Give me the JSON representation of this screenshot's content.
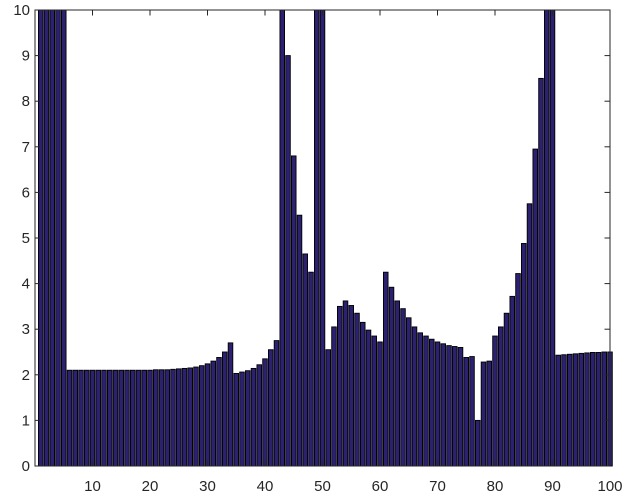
{
  "chart_data": {
    "type": "bar",
    "title": "",
    "xlabel": "",
    "ylabel": "",
    "xlim": [
      0,
      100
    ],
    "ylim": [
      0,
      10
    ],
    "x_ticks": [
      10,
      20,
      30,
      40,
      50,
      60,
      70,
      80,
      90,
      100
    ],
    "y_ticks": [
      0,
      1,
      2,
      3,
      4,
      5,
      6,
      7,
      8,
      9,
      10
    ],
    "grid": false,
    "legend": "none",
    "bar_color": "#2b2170",
    "bar_edge_color": "#000000",
    "x": [
      1,
      2,
      3,
      4,
      5,
      6,
      7,
      8,
      9,
      10,
      11,
      12,
      13,
      14,
      15,
      16,
      17,
      18,
      19,
      20,
      21,
      22,
      23,
      24,
      25,
      26,
      27,
      28,
      29,
      30,
      31,
      32,
      33,
      34,
      35,
      36,
      37,
      38,
      39,
      40,
      41,
      42,
      43,
      44,
      45,
      46,
      47,
      48,
      49,
      50,
      51,
      52,
      53,
      54,
      55,
      56,
      57,
      58,
      59,
      60,
      61,
      62,
      63,
      64,
      65,
      66,
      67,
      68,
      69,
      70,
      71,
      72,
      73,
      74,
      75,
      76,
      77,
      78,
      79,
      80,
      81,
      82,
      83,
      84,
      85,
      86,
      87,
      88,
      89,
      90,
      91,
      92,
      93,
      94,
      95,
      96,
      97,
      98,
      99,
      100
    ],
    "values": [
      10,
      10,
      10,
      10,
      10,
      2.1,
      2.1,
      2.1,
      2.1,
      2.1,
      2.1,
      2.1,
      2.1,
      2.1,
      2.1,
      2.1,
      2.1,
      2.1,
      2.1,
      2.1,
      2.11,
      2.11,
      2.11,
      2.12,
      2.13,
      2.14,
      2.15,
      2.17,
      2.2,
      2.24,
      2.3,
      2.38,
      2.5,
      2.7,
      2.03,
      2.06,
      2.09,
      2.14,
      2.22,
      2.35,
      2.55,
      2.75,
      10,
      9.0,
      6.8,
      5.5,
      4.65,
      4.25,
      10,
      10,
      2.55,
      3.05,
      3.5,
      3.62,
      3.52,
      3.35,
      3.15,
      2.98,
      2.85,
      2.72,
      4.25,
      3.92,
      3.62,
      3.45,
      3.25,
      3.05,
      2.92,
      2.85,
      2.78,
      2.72,
      2.68,
      2.64,
      2.62,
      2.6,
      2.38,
      2.4,
      1.0,
      2.28,
      2.3,
      2.85,
      3.05,
      3.35,
      3.72,
      4.22,
      4.88,
      5.75,
      6.95,
      8.5,
      10,
      10,
      2.43,
      2.44,
      2.45,
      2.46,
      2.47,
      2.48,
      2.49,
      2.49,
      2.5,
      2.5
    ]
  }
}
